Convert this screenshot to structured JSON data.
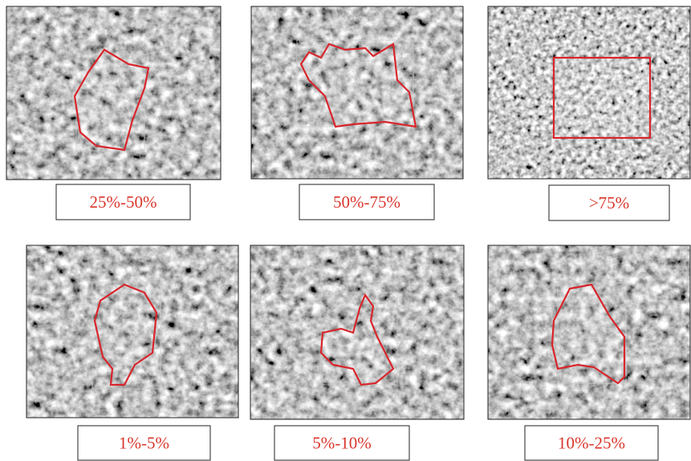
{
  "panels": [
    {
      "label": "25%-50%"
    },
    {
      "label": "50%-75%"
    },
    {
      "label": ">75%"
    },
    {
      "label": "1%-5%"
    },
    {
      "label": "5%-10%"
    },
    {
      "label": "10%-25%"
    }
  ]
}
